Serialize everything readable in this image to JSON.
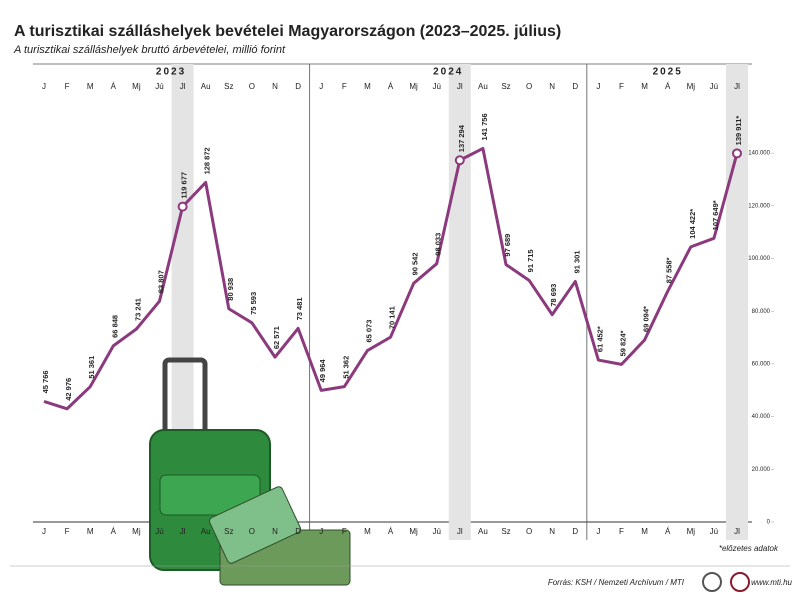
{
  "chart_data": {
    "type": "line",
    "title": "A turisztikai szálláshelyek bevételei Magyarországon (2023–2025. július)",
    "subtitle": "A turisztikai szálláshelyek bruttó árbevételei, millió forint",
    "years": [
      "2023",
      "2024",
      "2025"
    ],
    "categories": [
      "J",
      "F",
      "M",
      "Á",
      "Mj",
      "Jú",
      "Jl",
      "Au",
      "Sz",
      "O",
      "N",
      "D",
      "J",
      "F",
      "M",
      "Á",
      "Mj",
      "Jú",
      "Jl",
      "Au",
      "Sz",
      "O",
      "N",
      "D",
      "J",
      "F",
      "M",
      "Á",
      "Mj",
      "Jú",
      "Jl"
    ],
    "highlight_category": "Jl",
    "series": [
      {
        "color": "#8b3a7d",
        "values": [
          45766,
          42976,
          51361,
          66848,
          73241,
          83807,
          119677,
          128872,
          80938,
          75593,
          62571,
          73481,
          49964,
          51362,
          65073,
          70141,
          90542,
          98033,
          137294,
          141756,
          97689,
          91715,
          78693,
          91301,
          61452,
          59824,
          69094,
          87558,
          104422,
          107649,
          139911
        ],
        "value_labels": [
          "45 766",
          "42 976",
          "51 361",
          "66 848",
          "73 241",
          "83 807",
          "119 677",
          "128 872",
          "80 938",
          "75 593",
          "62 571",
          "73 481",
          "49 964",
          "51 362",
          "65 073",
          "70 141",
          "90 542",
          "98 033",
          "137 294",
          "141 756",
          "97 689",
          "91 715",
          "78 693",
          "91 301",
          "61 452*",
          "59 824*",
          "69 094*",
          "87 558*",
          "104 422*",
          "107 649*",
          "139 911*"
        ]
      }
    ],
    "ylim": [
      0,
      160000
    ],
    "yticks": [
      0,
      {
        "value": 20000,
        "label": "20.000"
      },
      {
        "value": 40000,
        "label": "40.000"
      },
      {
        "value": 60000,
        "label": "60.000"
      },
      {
        "value": 80000,
        "label": "80.000"
      },
      {
        "value": 100000,
        "label": "100.000"
      },
      {
        "value": 120000,
        "label": "120.000"
      },
      {
        "value": 140000,
        "label": "140.000"
      }
    ],
    "note": "*előzetes adatok",
    "source": "Forrás: KSH / Nemzeti Archívum / MTI",
    "website": "www.mti.hu"
  }
}
